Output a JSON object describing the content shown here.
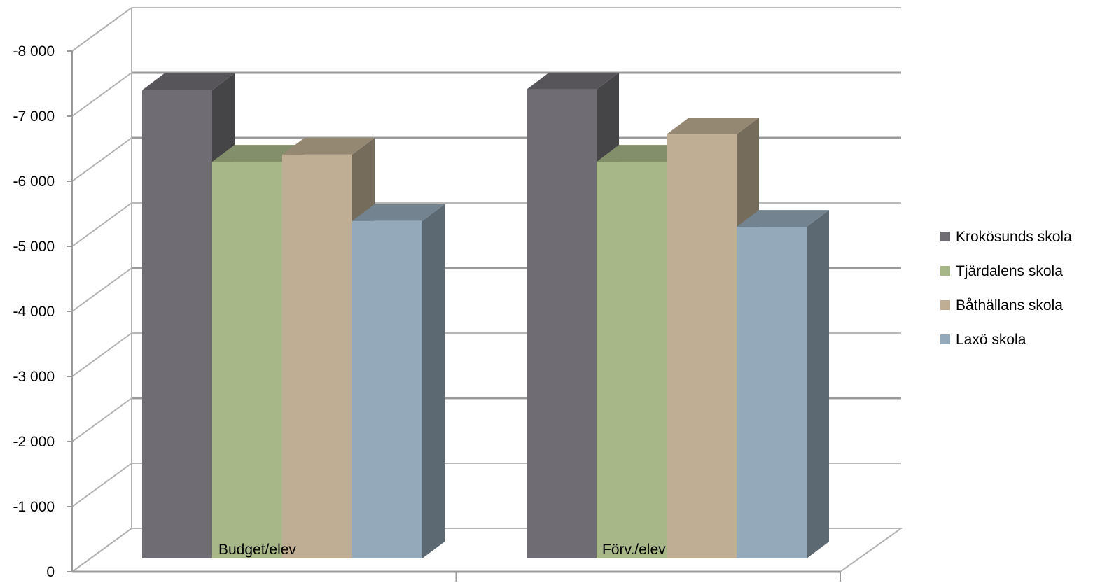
{
  "chart_data": {
    "type": "bar",
    "style": "3d-clustered-column",
    "title": "",
    "xlabel": "",
    "ylabel": "",
    "categories": [
      "Budget/elev",
      "Förv./elev"
    ],
    "series": [
      {
        "name": "Krokösunds skola",
        "values": [
          -7400,
          -7410
        ],
        "color": "#6f6d73"
      },
      {
        "name": "Tjärdalens skola",
        "values": [
          -6300,
          -6300
        ],
        "color": "#a7b788"
      },
      {
        "name": "Båthällans skola",
        "values": [
          -6410,
          -6720
        ],
        "color": "#bfae94"
      },
      {
        "name": "Laxö skola",
        "values": [
          -5390,
          -5300
        ],
        "color": "#94a9b9"
      }
    ],
    "y_ticks": [
      "0",
      "-1 000",
      "-2 000",
      "-3 000",
      "-4 000",
      "-5 000",
      "-6 000",
      "-7 000",
      "-8 000"
    ],
    "ylim": [
      0,
      -8000
    ],
    "grid": true,
    "legend_position": "right"
  }
}
